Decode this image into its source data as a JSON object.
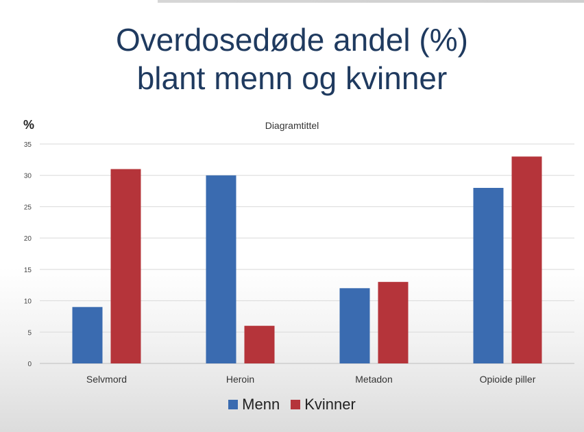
{
  "slide": {
    "title_line1": "Overdosedøde andel (%)",
    "title_line2": "blant menn og kvinner"
  },
  "chart_data": {
    "type": "bar",
    "title": "Diagramtittel",
    "ylabel": "%",
    "xlabel": "",
    "categories": [
      "Selvmord",
      "Heroin",
      "Metadon",
      "Opioide piller"
    ],
    "series": [
      {
        "name": "Menn",
        "values": [
          9,
          30,
          12,
          28
        ],
        "color": "#3a6bb0"
      },
      {
        "name": "Kvinner",
        "values": [
          31,
          6,
          13,
          33
        ],
        "color": "#b5343a"
      }
    ],
    "ylim": [
      0,
      35
    ],
    "yticks": [
      0,
      5,
      10,
      15,
      20,
      25,
      30,
      35
    ],
    "grid": true,
    "legend_position": "bottom"
  }
}
